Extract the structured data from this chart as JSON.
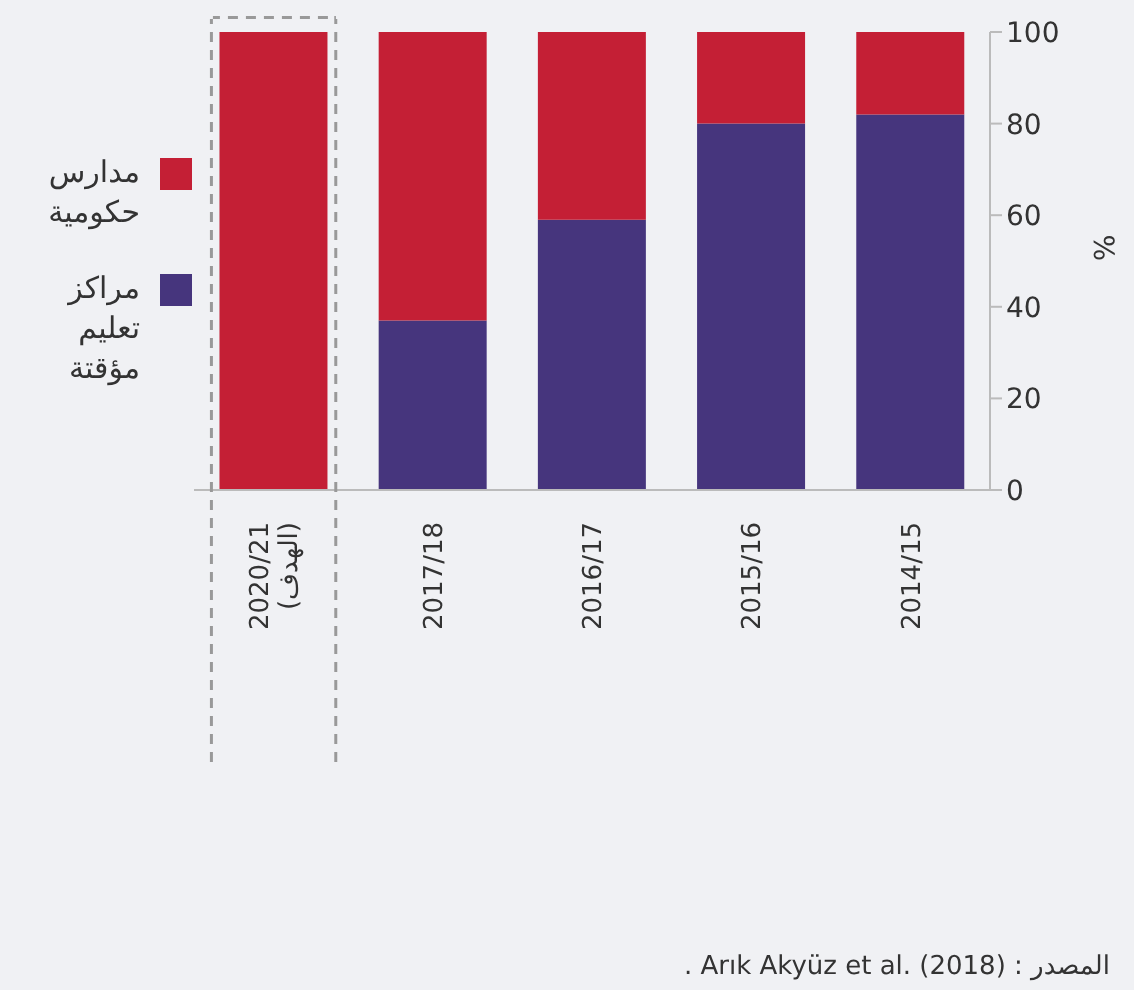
{
  "chart_data": {
    "type": "bar",
    "stacked": true,
    "categories": [
      "2020/21 (الهدف)",
      "2017/18",
      "2016/17",
      "2015/16",
      "2014/15"
    ],
    "series": [
      {
        "name": "مراكز تعليم مؤقتة",
        "color": "#46357d",
        "values": [
          0,
          37,
          59,
          80,
          82
        ]
      },
      {
        "name": "مدارس حكومية",
        "color": "#c41f35",
        "values": [
          100,
          63,
          41,
          20,
          18
        ]
      }
    ],
    "ylabel": "%",
    "ylim": [
      0,
      100
    ],
    "yticks": [
      0,
      20,
      40,
      60,
      80,
      100
    ],
    "grid": false,
    "legend": "left",
    "annotations": [
      "المصدر : Arık Akyüz et al. (2018) ."
    ]
  }
}
